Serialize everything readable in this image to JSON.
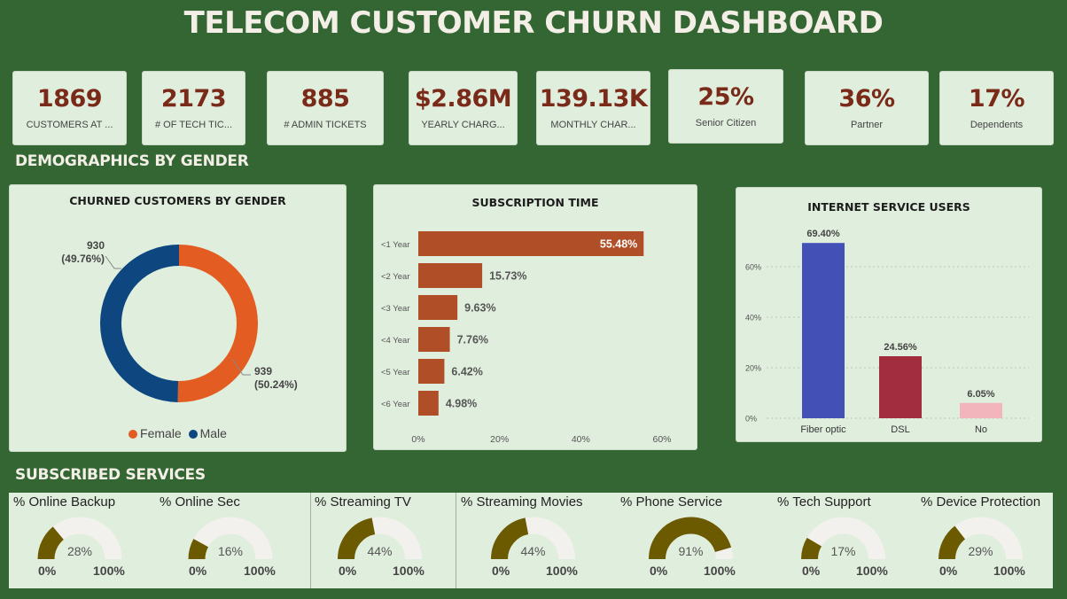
{
  "title": "TELECOM CUSTOMER CHURN DASHBOARD",
  "kpis": [
    {
      "value": "1869",
      "label": "CUSTOMERS AT ..."
    },
    {
      "value": "2173",
      "label": "# OF TECH TIC..."
    },
    {
      "value": "885",
      "label": "# ADMIN TICKETS"
    },
    {
      "value": "$2.86M",
      "label": "YEARLY CHARG..."
    },
    {
      "value": "139.13K",
      "label": "MONTHLY CHAR..."
    },
    {
      "value": "25%",
      "label": "Senior Citizen"
    },
    {
      "value": "36%",
      "label": "Partner"
    },
    {
      "value": "17%",
      "label": "Dependents"
    }
  ],
  "sections": {
    "demographics": "DEMOGRAPHICS BY GENDER",
    "services": "SUBSCRIBED SERVICES"
  },
  "colors": {
    "background": "#336633",
    "panel": "#e0eedd",
    "kpi_value": "#7a2a18",
    "female": "#e35c21",
    "male": "#0e4680",
    "subscription_bar": "#b04e28",
    "fiber": "#4350b6",
    "dsl": "#a22d3e",
    "no": "#f2b5bc",
    "gauge_fill": "#6b5a00",
    "gauge_track": "#f3f1ee"
  },
  "chart_data": [
    {
      "type": "pie",
      "title": "CHURNED CUSTOMERS BY GENDER",
      "categories": [
        "Female",
        "Male"
      ],
      "values": [
        939,
        930
      ],
      "labels": [
        [
          "939",
          "(50.24%)"
        ],
        [
          "930",
          "(49.76%)"
        ]
      ],
      "legend": "bottom"
    },
    {
      "type": "bar",
      "orientation": "horizontal",
      "title": "SUBSCRIPTION TIME",
      "categories": [
        "<1 Year",
        "<2 Year",
        "<3 Year",
        "<4 Year",
        "<5 Year",
        "<6 Year"
      ],
      "values": [
        55.48,
        15.73,
        9.63,
        7.76,
        6.42,
        4.98
      ],
      "value_labels": [
        "55.48%",
        "15.73%",
        "9.63%",
        "7.76%",
        "6.42%",
        "4.98%"
      ],
      "xticks": [
        "0%",
        "20%",
        "40%",
        "60%"
      ],
      "xlim": [
        0,
        60
      ]
    },
    {
      "type": "bar",
      "title": "INTERNET SERVICE USERS",
      "categories": [
        "Fiber optic",
        "DSL",
        "No"
      ],
      "values": [
        69.4,
        24.56,
        6.05
      ],
      "value_labels": [
        "69.40%",
        "24.56%",
        "6.05%"
      ],
      "yticks": [
        "0%",
        "20%",
        "40%",
        "60%"
      ],
      "ylim": [
        0,
        60
      ],
      "grid": true
    }
  ],
  "gauges": [
    {
      "title": "% Online Backup",
      "value": 28,
      "label": "28%",
      "min": "0%",
      "max": "100%"
    },
    {
      "title": "% Online Sec",
      "value": 16,
      "label": "16%",
      "min": "0%",
      "max": "100%"
    },
    {
      "title": "% Streaming TV",
      "value": 44,
      "label": "44%",
      "min": "0%",
      "max": "100%"
    },
    {
      "title": "% Streaming Movies",
      "value": 44,
      "label": "44%",
      "min": "0%",
      "max": "100%"
    },
    {
      "title": "% Phone Service",
      "value": 91,
      "label": "91%",
      "min": "0%",
      "max": "100%"
    },
    {
      "title": "% Tech Support",
      "value": 17,
      "label": "17%",
      "min": "0%",
      "max": "100%"
    },
    {
      "title": "% Device Protection",
      "value": 29,
      "label": "29%",
      "min": "0%",
      "max": "100%"
    }
  ]
}
